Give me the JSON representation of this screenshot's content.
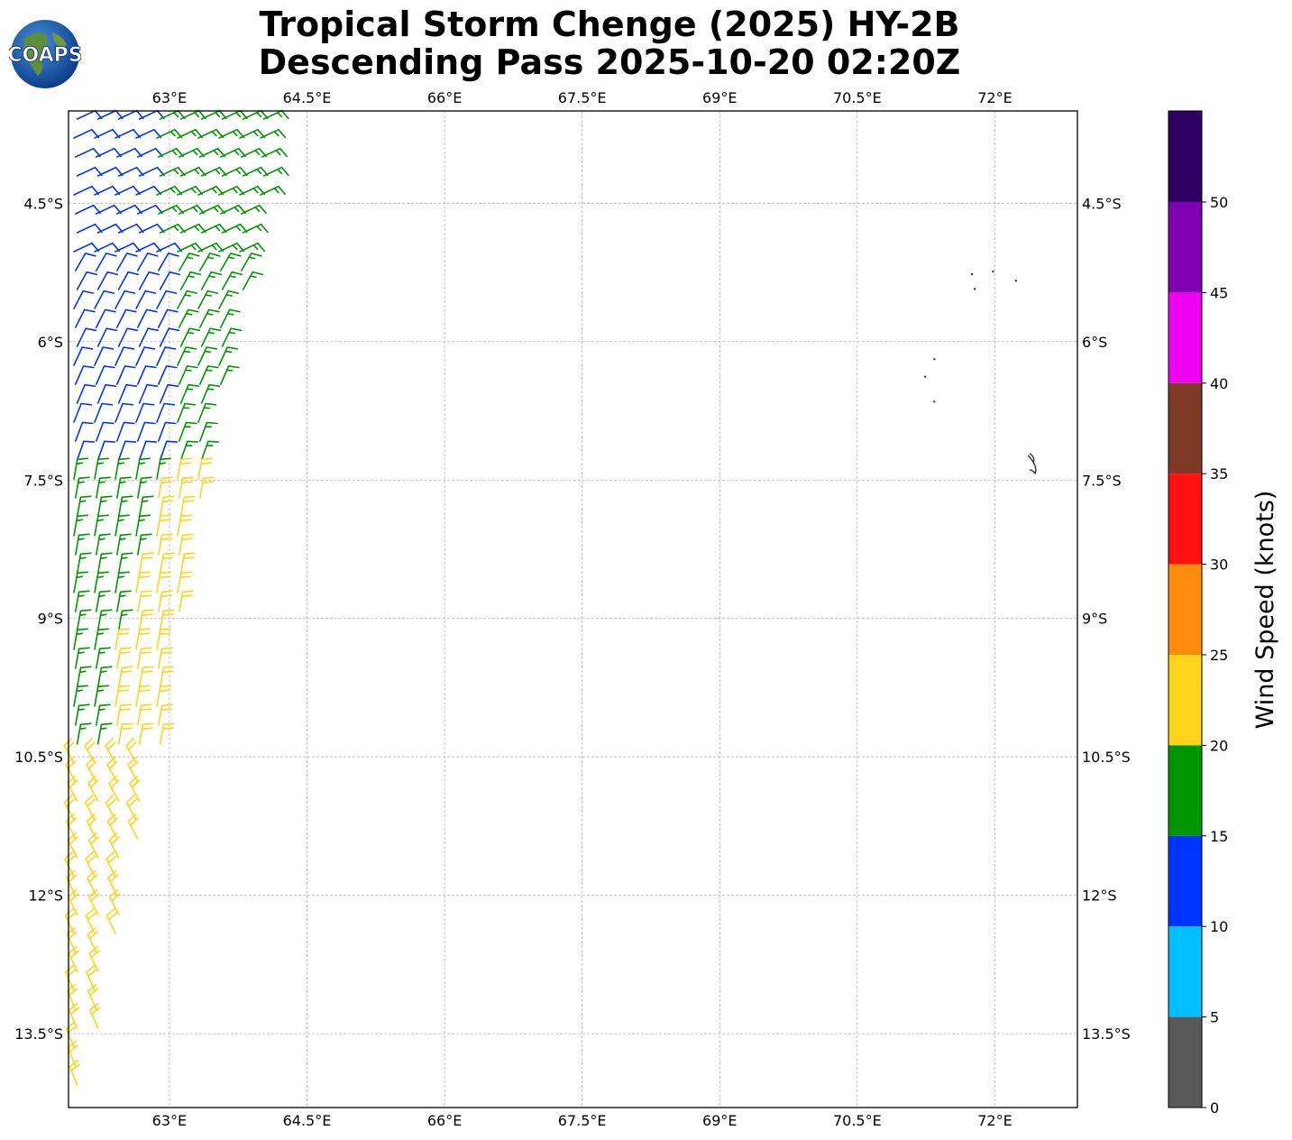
{
  "title_line1": "Tropical Storm Chenge (2025) HY-2B",
  "title_line2": "Descending Pass 2025-10-20 02:20Z",
  "logo_text": "COAPS",
  "lon_ticks": [
    "63°E",
    "64.5°E",
    "66°E",
    "67.5°E",
    "69°E",
    "70.5°E",
    "72°E"
  ],
  "lat_ticks": [
    "4.5°S",
    "6°S",
    "7.5°S",
    "9°S",
    "10.5°S",
    "12°S",
    "13.5°S"
  ],
  "colorbar": {
    "label": "Wind Speed (knots)",
    "ticks": [
      "0",
      "5",
      "10",
      "15",
      "20",
      "25",
      "30",
      "35",
      "40",
      "45",
      "50"
    ],
    "colors": [
      "#595959",
      "#00bfff",
      "#0033ff",
      "#009600",
      "#ffd41a",
      "#ff8c0d",
      "#ff1111",
      "#7f3a26",
      "#f000f0",
      "#8000b4",
      "#2d0061"
    ]
  },
  "map": {
    "lon_range": [
      61.9,
      72.9
    ],
    "lat_range": [
      -14.3,
      -3.5
    ],
    "gridlines": true
  },
  "wind_swath": {
    "speed_bands": [
      {
        "color": "#0033ff",
        "range_knots": [
          10,
          15
        ],
        "region": "north-west"
      },
      {
        "color": "#009600",
        "range_knots": [
          15,
          20
        ],
        "region": "north-centre"
      },
      {
        "color": "#ffd41a",
        "range_knots": [
          20,
          25
        ],
        "region": "south"
      }
    ]
  },
  "islands": [
    {
      "lon": 71.75,
      "lat": -5.27
    },
    {
      "lon": 71.78,
      "lat": -5.43
    },
    {
      "lon": 71.98,
      "lat": -5.24
    },
    {
      "lon": 72.23,
      "lat": -5.34
    },
    {
      "lon": 71.34,
      "lat": -6.19
    },
    {
      "lon": 71.24,
      "lat": -6.38
    },
    {
      "lon": 71.34,
      "lat": -6.65
    }
  ],
  "diego_garcia": {
    "lon": 72.42,
    "lat": -7.33
  }
}
